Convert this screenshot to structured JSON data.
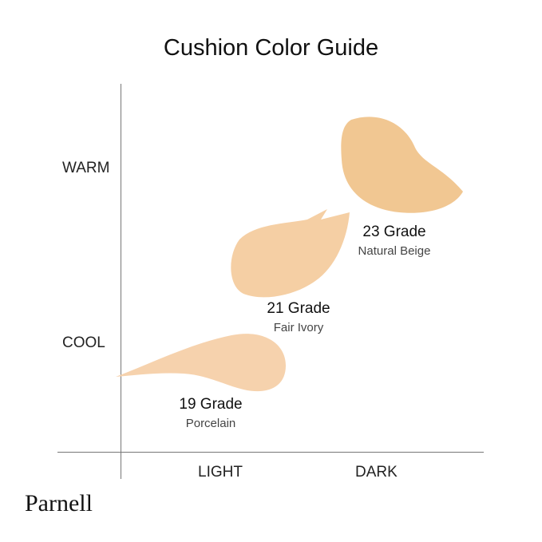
{
  "title": "Cushion Color Guide",
  "axes": {
    "y_top": "WARM",
    "y_bottom": "COOL",
    "x_left": "LIGHT",
    "x_right": "DARK"
  },
  "shades": [
    {
      "grade": "19 Grade",
      "name": "Porcelain",
      "color": "#f6d2ad"
    },
    {
      "grade": "21 Grade",
      "name": "Fair Ivory",
      "color": "#f5cfa4"
    },
    {
      "grade": "23 Grade",
      "name": "Natural Beige",
      "color": "#f1c792"
    }
  ],
  "brand": "Parnell"
}
